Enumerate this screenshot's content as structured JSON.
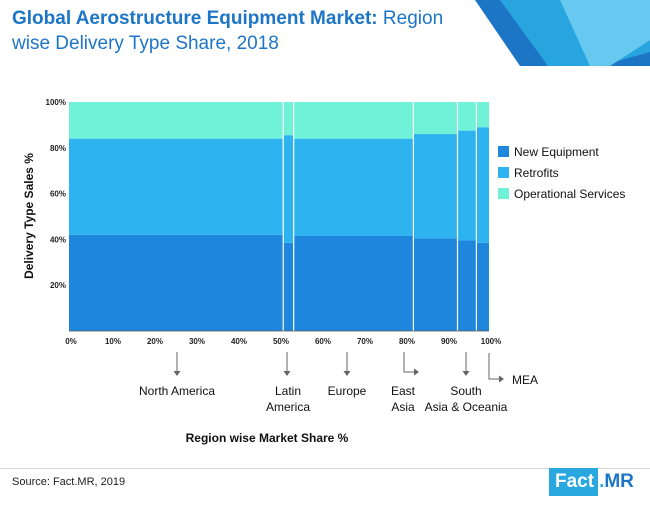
{
  "header": {
    "title_bold": "Global Aerostructure Equipment Market:",
    "title_rest": " Region wise Delivery Type Share, 2018"
  },
  "footer": {
    "source": "Source: Fact.MR, 2019",
    "logo_left": "Fact",
    "logo_dot": ".",
    "logo_right": "MR"
  },
  "colors": {
    "brand_blue": "#1d75c6",
    "accent_cyan": "#29a8e0"
  },
  "chart_data": {
    "type": "marimekko",
    "xlabel": "Region wise Market Share %",
    "ylabel": "Delivery Type Sales %",
    "x_ticks": [
      "0%",
      "10%",
      "20%",
      "30%",
      "40%",
      "50%",
      "60%",
      "70%",
      "80%",
      "90%",
      "100%"
    ],
    "y_ticks": [
      "20%",
      "40%",
      "60%",
      "80%",
      "100%"
    ],
    "xlim": [
      0,
      100
    ],
    "ylim": [
      0,
      100
    ],
    "grid": false,
    "legend_position": "right",
    "categories": [
      {
        "name": "North America",
        "label_lines": [
          "North America"
        ],
        "x_start": 0,
        "x_end": 51
      },
      {
        "name": "Latin America",
        "label_lines": [
          "Latin",
          "America"
        ],
        "x_start": 51,
        "x_end": 53.5
      },
      {
        "name": "Europe",
        "label_lines": [
          "Europe"
        ],
        "x_start": 53.5,
        "x_end": 82
      },
      {
        "name": "East Asia",
        "label_lines": [
          "East",
          "Asia"
        ],
        "x_start": 82,
        "x_end": 92.5
      },
      {
        "name": "South Asia & Oceania",
        "label_lines": [
          "South",
          "Asia & Oceania"
        ],
        "x_start": 92.5,
        "x_end": 97
      },
      {
        "name": "MEA",
        "label_lines": [
          "MEA"
        ],
        "x_start": 97,
        "x_end": 100
      }
    ],
    "series": [
      {
        "name": "New Equipment",
        "color": "#1e86dd",
        "values": [
          42,
          38.5,
          41.5,
          40.5,
          39.5,
          38.5
        ]
      },
      {
        "name": "Retrofits",
        "color": "#2db4f0",
        "values": [
          42,
          47,
          42.5,
          45.5,
          48,
          50.5
        ]
      },
      {
        "name": "Operational Services",
        "color": "#6ff2d8",
        "values": [
          16,
          14.5,
          16,
          14,
          12.5,
          11
        ]
      }
    ]
  }
}
